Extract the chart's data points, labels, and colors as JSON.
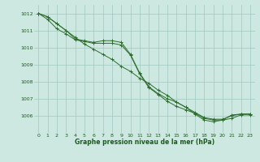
{
  "x": [
    0,
    1,
    2,
    3,
    4,
    5,
    6,
    7,
    8,
    9,
    10,
    11,
    12,
    13,
    14,
    15,
    16,
    17,
    18,
    19,
    20,
    21,
    22,
    23
  ],
  "line1": [
    1012.0,
    1011.8,
    1011.4,
    1011.0,
    1010.5,
    1010.4,
    1010.3,
    1010.4,
    1010.4,
    1010.3,
    1009.6,
    1008.5,
    1007.7,
    1007.3,
    1007.0,
    1006.8,
    1006.5,
    1006.1,
    1005.75,
    1005.65,
    1005.75,
    1006.05,
    1006.1,
    1006.1
  ],
  "line2": [
    1012.0,
    1011.65,
    1011.1,
    1010.8,
    1010.45,
    1010.35,
    1010.25,
    1010.25,
    1010.25,
    1010.15,
    1009.55,
    1008.45,
    1007.65,
    1007.25,
    1006.85,
    1006.55,
    1006.35,
    1006.15,
    1005.85,
    1005.75,
    1005.75,
    1005.85,
    1006.05,
    1006.05
  ],
  "line3": [
    1012.0,
    1011.8,
    1011.4,
    1011.0,
    1010.6,
    1010.2,
    1009.9,
    1009.6,
    1009.3,
    1008.9,
    1008.6,
    1008.2,
    1007.9,
    1007.5,
    1007.2,
    1006.8,
    1006.5,
    1006.2,
    1005.9,
    1005.8,
    1005.8,
    1006.0,
    1006.1,
    1006.1
  ],
  "bg_color": "#cce8e0",
  "line_color": "#2d6e2d",
  "grid_color": "#9dc8c0",
  "label_color": "#1a5c1a",
  "xlabel": "Graphe pression niveau de la mer (hPa)",
  "ylim_min": 1005.0,
  "ylim_max": 1012.5,
  "yticks": [
    1006,
    1007,
    1008,
    1009,
    1010,
    1011,
    1012
  ],
  "xticks": [
    0,
    1,
    2,
    3,
    4,
    5,
    6,
    7,
    8,
    9,
    10,
    11,
    12,
    13,
    14,
    15,
    16,
    17,
    18,
    19,
    20,
    21,
    22,
    23
  ]
}
